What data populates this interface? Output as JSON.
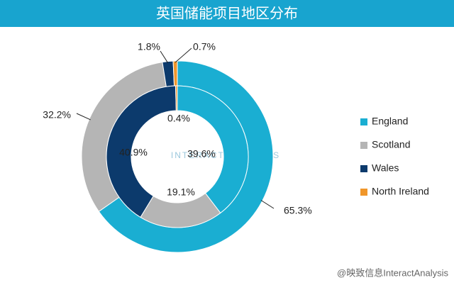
{
  "chart_data": {
    "type": "double-donut",
    "title": "英国储能项目地区分布",
    "categories": [
      "England",
      "Scotland",
      "Wales",
      "North Ireland"
    ],
    "colors": [
      "#1aaed2",
      "#b5b5b5",
      "#0c3a6c",
      "#f0962a"
    ],
    "series": [
      {
        "values": [
          65.3,
          32.2,
          1.8,
          0.7
        ],
        "value_labels": [
          "65.3%",
          "32.2%",
          "1.8%",
          "0.7%"
        ]
      },
      {
        "values": [
          39.6,
          19.1,
          40.9,
          0.4
        ],
        "value_labels": [
          "39.6%",
          "19.1%",
          "40.9%",
          "0.4%"
        ]
      }
    ],
    "watermark": "INTERACT ANALYSIS",
    "footer": "@映致信息InteractAnalysis"
  }
}
